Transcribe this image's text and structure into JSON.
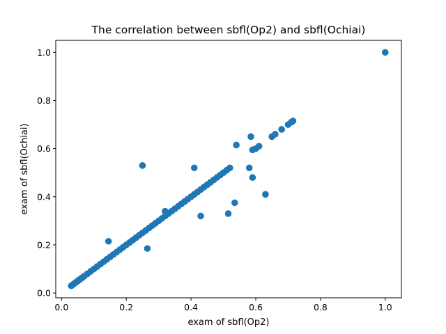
{
  "chart_data": {
    "type": "scatter",
    "title": "The correlation between sbfl(Op2) and sbfl(Ochiai)",
    "xlabel": "exam of sbfl(Op2)",
    "ylabel": "exam of sbfl(Ochiai)",
    "xlim": [
      -0.018,
      1.05
    ],
    "ylim": [
      -0.02,
      1.05
    ],
    "xticks": [
      0.0,
      0.2,
      0.4,
      0.6,
      0.8,
      1.0
    ],
    "xtick_labels": [
      "0.0",
      "0.2",
      "0.4",
      "0.6",
      "0.8",
      "1.0"
    ],
    "yticks": [
      0.0,
      0.2,
      0.4,
      0.6,
      0.8,
      1.0
    ],
    "ytick_labels": [
      "0.0",
      "0.2",
      "0.4",
      "0.6",
      "0.8",
      "1.0"
    ],
    "grid": false,
    "marker_color": "#1f77b4",
    "series": [
      {
        "points": [
          [
            0.03,
            0.03
          ],
          [
            0.035,
            0.035
          ],
          [
            0.04,
            0.04
          ],
          [
            0.045,
            0.045
          ],
          [
            0.05,
            0.05
          ],
          [
            0.055,
            0.055
          ],
          [
            0.06,
            0.06
          ],
          [
            0.065,
            0.065
          ],
          [
            0.07,
            0.07
          ],
          [
            0.08,
            0.08
          ],
          [
            0.09,
            0.09
          ],
          [
            0.1,
            0.1
          ],
          [
            0.11,
            0.11
          ],
          [
            0.12,
            0.12
          ],
          [
            0.13,
            0.13
          ],
          [
            0.14,
            0.14
          ],
          [
            0.15,
            0.15
          ],
          [
            0.16,
            0.16
          ],
          [
            0.17,
            0.17
          ],
          [
            0.18,
            0.18
          ],
          [
            0.19,
            0.19
          ],
          [
            0.2,
            0.2
          ],
          [
            0.21,
            0.21
          ],
          [
            0.22,
            0.22
          ],
          [
            0.23,
            0.23
          ],
          [
            0.24,
            0.24
          ],
          [
            0.25,
            0.25
          ],
          [
            0.26,
            0.26
          ],
          [
            0.27,
            0.27
          ],
          [
            0.28,
            0.28
          ],
          [
            0.29,
            0.29
          ],
          [
            0.3,
            0.3
          ],
          [
            0.31,
            0.31
          ],
          [
            0.32,
            0.32
          ],
          [
            0.33,
            0.33
          ],
          [
            0.34,
            0.34
          ],
          [
            0.35,
            0.35
          ],
          [
            0.36,
            0.36
          ],
          [
            0.37,
            0.37
          ],
          [
            0.38,
            0.38
          ],
          [
            0.39,
            0.39
          ],
          [
            0.4,
            0.4
          ],
          [
            0.41,
            0.41
          ],
          [
            0.42,
            0.42
          ],
          [
            0.43,
            0.43
          ],
          [
            0.44,
            0.44
          ],
          [
            0.45,
            0.45
          ],
          [
            0.46,
            0.46
          ],
          [
            0.47,
            0.47
          ],
          [
            0.48,
            0.48
          ],
          [
            0.49,
            0.49
          ],
          [
            0.5,
            0.5
          ],
          [
            0.51,
            0.51
          ],
          [
            0.52,
            0.52
          ],
          [
            0.6,
            0.6
          ],
          [
            0.61,
            0.61
          ],
          [
            0.65,
            0.65
          ],
          [
            0.66,
            0.66
          ],
          [
            0.68,
            0.68
          ],
          [
            0.7,
            0.7
          ],
          [
            0.71,
            0.71
          ],
          [
            0.715,
            0.715
          ],
          [
            0.32,
            0.34
          ],
          [
            0.59,
            0.595
          ],
          [
            1.0,
            1.0
          ],
          [
            0.145,
            0.215
          ],
          [
            0.25,
            0.53
          ],
          [
            0.265,
            0.185
          ],
          [
            0.41,
            0.52
          ],
          [
            0.43,
            0.32
          ],
          [
            0.515,
            0.33
          ],
          [
            0.535,
            0.375
          ],
          [
            0.54,
            0.615
          ],
          [
            0.58,
            0.52
          ],
          [
            0.585,
            0.65
          ],
          [
            0.59,
            0.48
          ],
          [
            0.63,
            0.41
          ]
        ]
      }
    ]
  }
}
